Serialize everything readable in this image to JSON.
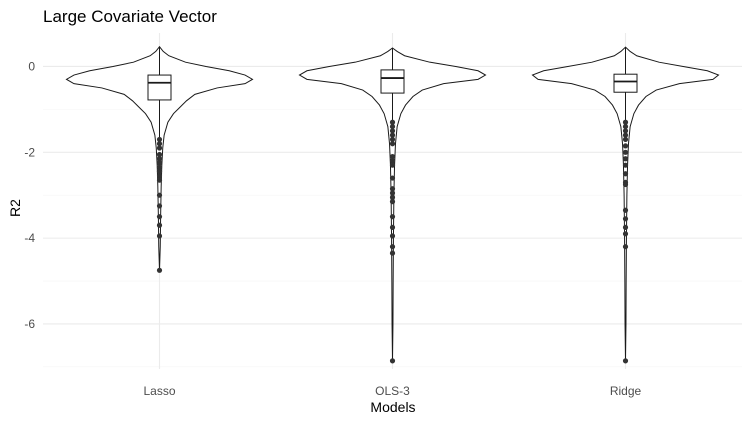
{
  "chart_data": {
    "type": "violin",
    "title": "Large Covariate Vector",
    "xlabel": "Models",
    "ylabel": "R2",
    "ylim": [
      -7.05,
      0.78
    ],
    "y_ticks": [
      0,
      -2,
      -4,
      -6
    ],
    "y_tick_labels": [
      "0",
      "-2",
      "-4",
      "-6"
    ],
    "grid": true,
    "categories": [
      "Lasso",
      "OLS-3",
      "Ridge"
    ],
    "series": [
      {
        "category": "Lasso",
        "box": {
          "q1": -0.78,
          "median": -0.38,
          "q3": -0.2,
          "whisker_low": -1.7,
          "whisker_high": 0.46
        },
        "density": [
          [
            0.46,
            0.0
          ],
          [
            0.35,
            0.04
          ],
          [
            0.25,
            0.1
          ],
          [
            0.1,
            0.28
          ],
          [
            0.0,
            0.5
          ],
          [
            -0.1,
            0.75
          ],
          [
            -0.2,
            0.92
          ],
          [
            -0.3,
            1.0
          ],
          [
            -0.4,
            0.92
          ],
          [
            -0.5,
            0.62
          ],
          [
            -0.65,
            0.38
          ],
          [
            -0.8,
            0.29
          ],
          [
            -0.95,
            0.22
          ],
          [
            -1.1,
            0.15
          ],
          [
            -1.3,
            0.09
          ],
          [
            -1.6,
            0.05
          ],
          [
            -1.9,
            0.035
          ],
          [
            -2.3,
            0.025
          ],
          [
            -2.8,
            0.018
          ],
          [
            -3.5,
            0.012
          ],
          [
            -4.2,
            0.008
          ],
          [
            -4.76,
            0.0
          ]
        ],
        "outliers": [
          -1.7,
          -1.8,
          -1.9,
          -2.05,
          -2.15,
          -2.25,
          -2.35,
          -2.45,
          -2.55,
          -2.65,
          -3.0,
          -3.25,
          -3.5,
          -3.7,
          -3.95,
          -4.75
        ]
      },
      {
        "category": "OLS-3",
        "box": {
          "q1": -0.62,
          "median": -0.27,
          "q3": -0.08,
          "whisker_low": -1.3,
          "whisker_high": 0.43
        },
        "density": [
          [
            0.43,
            0.0
          ],
          [
            0.35,
            0.05
          ],
          [
            0.25,
            0.13
          ],
          [
            0.1,
            0.4
          ],
          [
            0.0,
            0.68
          ],
          [
            -0.1,
            0.92
          ],
          [
            -0.2,
            1.0
          ],
          [
            -0.3,
            0.92
          ],
          [
            -0.4,
            0.55
          ],
          [
            -0.55,
            0.32
          ],
          [
            -0.7,
            0.22
          ],
          [
            -0.9,
            0.14
          ],
          [
            -1.1,
            0.09
          ],
          [
            -1.4,
            0.05
          ],
          [
            -1.8,
            0.032
          ],
          [
            -2.3,
            0.022
          ],
          [
            -3.0,
            0.015
          ],
          [
            -4.0,
            0.01
          ],
          [
            -5.0,
            0.007
          ],
          [
            -6.0,
            0.005
          ],
          [
            -6.86,
            0.0
          ]
        ],
        "outliers": [
          -1.3,
          -1.4,
          -1.5,
          -1.6,
          -1.7,
          -1.8,
          -2.1,
          -2.2,
          -2.3,
          -2.6,
          -2.85,
          -2.95,
          -3.05,
          -3.15,
          -3.5,
          -3.75,
          -3.95,
          -4.2,
          -4.35,
          -6.86
        ]
      },
      {
        "category": "Ridge",
        "box": {
          "q1": -0.6,
          "median": -0.35,
          "q3": -0.18,
          "whisker_low": -1.3,
          "whisker_high": 0.45
        },
        "density": [
          [
            0.45,
            0.0
          ],
          [
            0.35,
            0.05
          ],
          [
            0.25,
            0.12
          ],
          [
            0.1,
            0.36
          ],
          [
            0.0,
            0.62
          ],
          [
            -0.1,
            0.88
          ],
          [
            -0.2,
            1.0
          ],
          [
            -0.3,
            0.94
          ],
          [
            -0.4,
            0.58
          ],
          [
            -0.55,
            0.33
          ],
          [
            -0.7,
            0.22
          ],
          [
            -0.9,
            0.14
          ],
          [
            -1.1,
            0.09
          ],
          [
            -1.4,
            0.05
          ],
          [
            -1.8,
            0.032
          ],
          [
            -2.3,
            0.022
          ],
          [
            -3.0,
            0.015
          ],
          [
            -4.0,
            0.01
          ],
          [
            -5.0,
            0.007
          ],
          [
            -6.0,
            0.005
          ],
          [
            -6.86,
            0.0
          ]
        ],
        "outliers": [
          -1.3,
          -1.4,
          -1.5,
          -1.6,
          -1.7,
          -1.85,
          -2.0,
          -2.15,
          -2.3,
          -2.5,
          -2.7,
          -2.75,
          -3.35,
          -3.55,
          -3.75,
          -3.9,
          -4.2,
          -6.86
        ]
      }
    ]
  }
}
